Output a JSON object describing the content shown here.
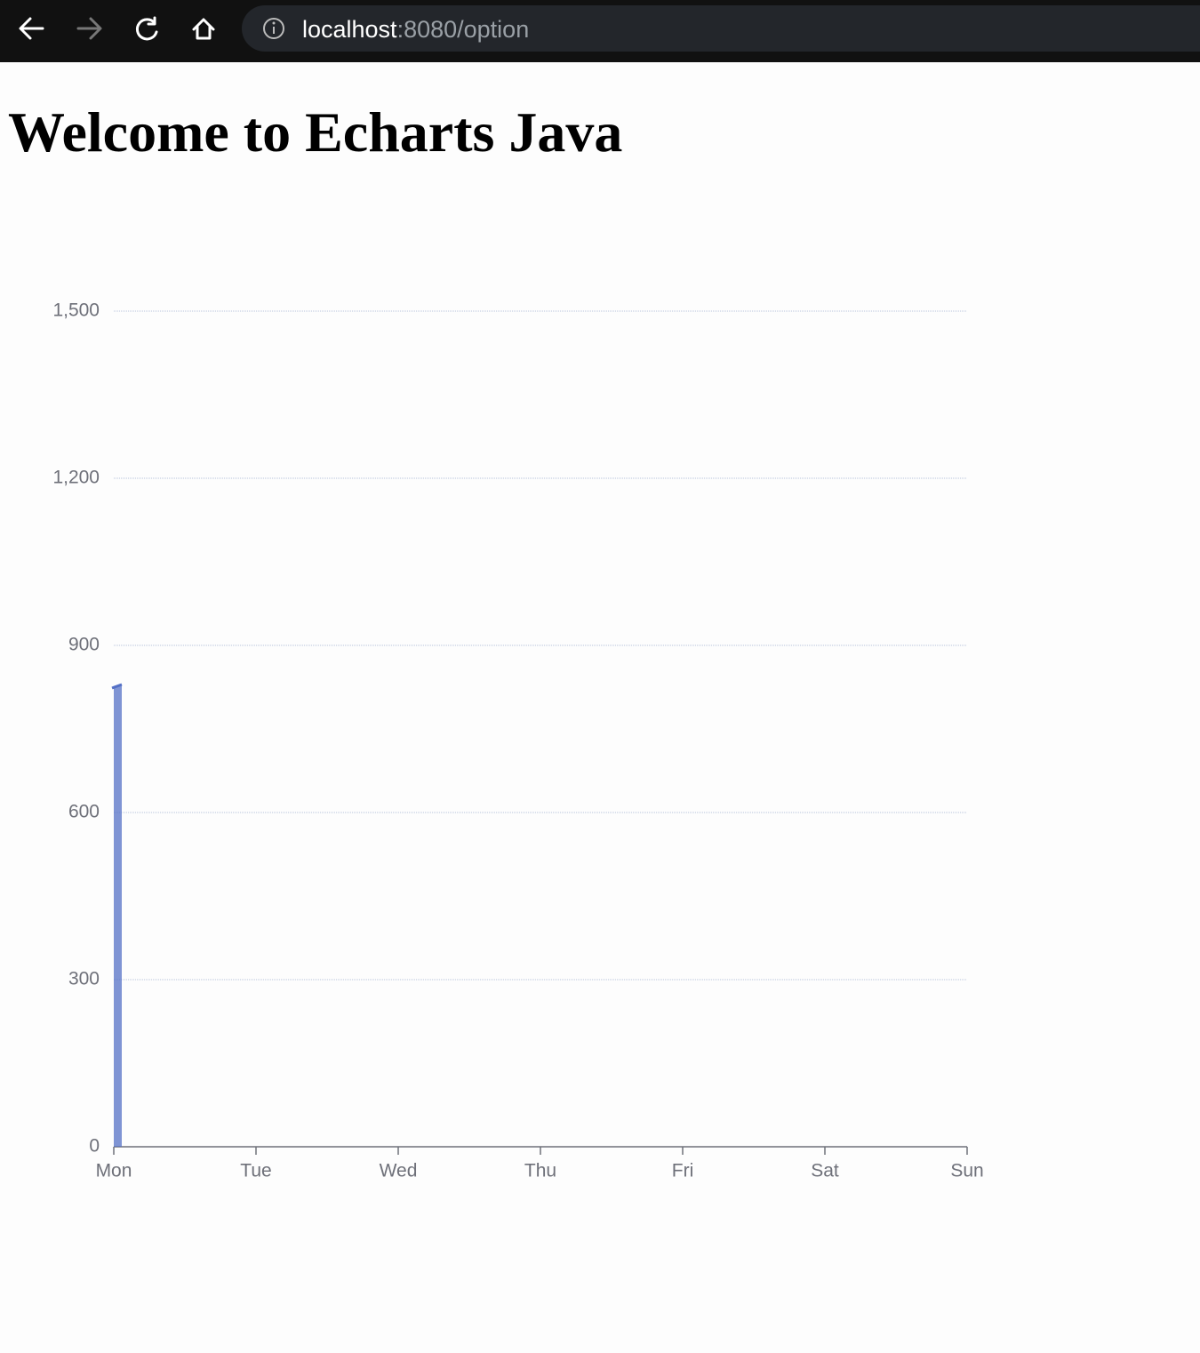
{
  "browser": {
    "url_host": "localhost",
    "url_path": ":8080/option"
  },
  "heading": "Welcome to Echarts Java",
  "chart_data": {
    "type": "line",
    "area": true,
    "categories": [
      "Mon",
      "Tue",
      "Wed",
      "Thu",
      "Fri",
      "Sat",
      "Sun"
    ],
    "series": [
      {
        "name": null,
        "color": "#5470c6",
        "values": [
          825,
          null,
          null,
          null,
          null,
          null,
          null
        ]
      }
    ],
    "ylim": [
      0,
      1500
    ],
    "yticks": [
      0,
      300,
      600,
      900,
      {
        "value": 1200,
        "label": "1,200"
      },
      {
        "value": 1500,
        "label": "1,500"
      }
    ],
    "grid": true
  }
}
